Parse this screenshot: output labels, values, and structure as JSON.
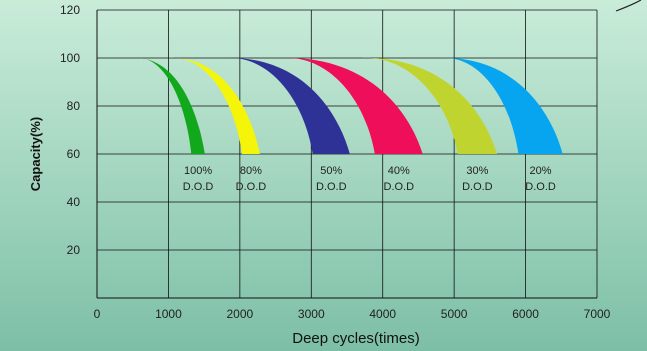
{
  "chart_data": {
    "type": "area",
    "title": "",
    "xlabel": "Deep cycles(times)",
    "ylabel": "Capacity(%)",
    "xlim": [
      0,
      7000
    ],
    "ylim": [
      0,
      120
    ],
    "x_ticks": [
      "0",
      "1000",
      "2000",
      "3000",
      "4000",
      "5000",
      "6000",
      "7000"
    ],
    "y_ticks": [
      "20",
      "40",
      "60",
      "80",
      "100",
      "120"
    ],
    "grid": true,
    "background": {
      "top": "#c9ecd9",
      "bottom": "#7dbfa6"
    },
    "series": [
      {
        "label": [
          "100%",
          "D.O.D"
        ],
        "color": "#11a81c",
        "start": 500,
        "inner_end_at_60": 1320,
        "outer_end_at_60": 1510
      },
      {
        "label": [
          "80%",
          "D.O.D"
        ],
        "color": "#f5f50a",
        "start": 1000,
        "inner_end_at_60": 2030,
        "outer_end_at_60": 2280
      },
      {
        "label": [
          "50%",
          "D.O.D"
        ],
        "color": "#2e3195",
        "start": 1800,
        "inner_end_at_60": 3020,
        "outer_end_at_60": 3540
      },
      {
        "label": [
          "40%",
          "D.O.D"
        ],
        "color": "#ee0e5a",
        "start": 2600,
        "inner_end_at_60": 3890,
        "outer_end_at_60": 4560
      },
      {
        "label": [
          "30%",
          "D.O.D"
        ],
        "color": "#c0d430",
        "start": 3700,
        "inner_end_at_60": 5050,
        "outer_end_at_60": 5600
      },
      {
        "label": [
          "20%",
          "D.O.D"
        ],
        "color": "#07a5ef",
        "start": 4800,
        "inner_end_at_60": 5900,
        "outer_end_at_60": 6520
      }
    ]
  }
}
